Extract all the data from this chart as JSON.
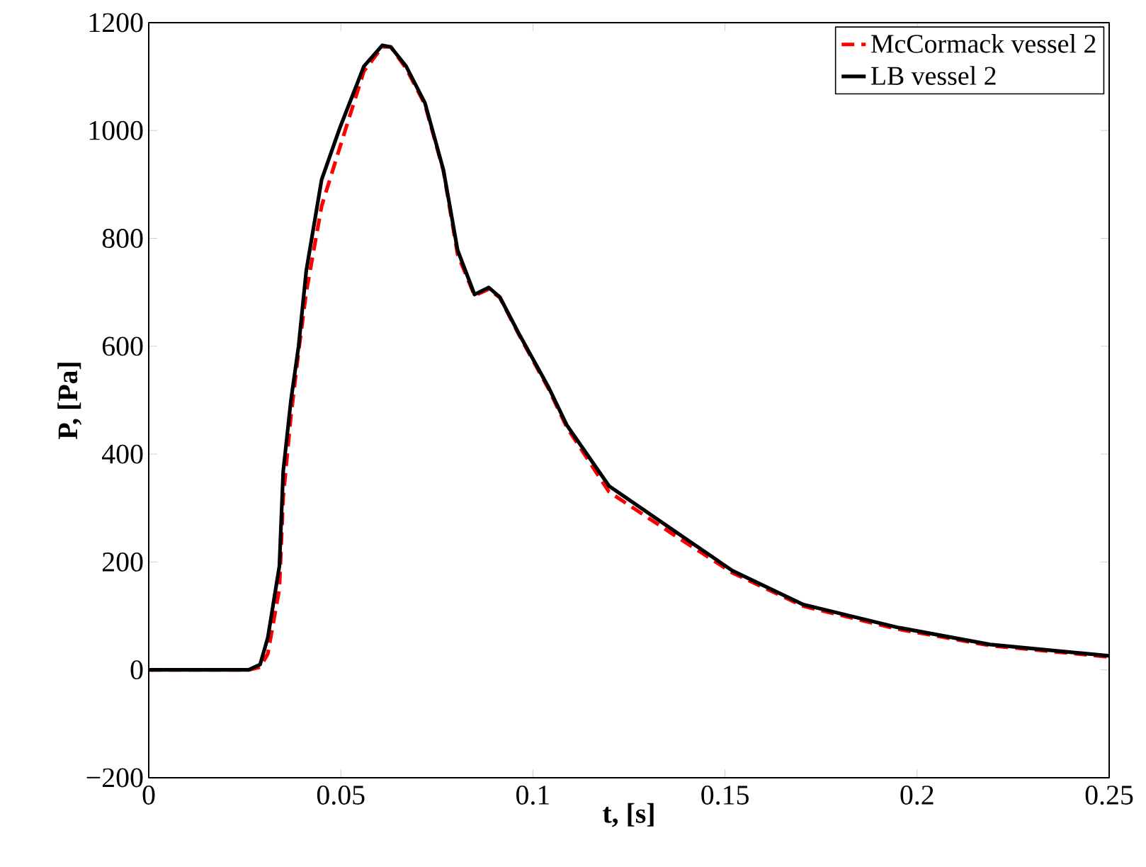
{
  "chart_data": {
    "type": "line",
    "xlabel": "t, [s]",
    "ylabel": "P, [Pa]",
    "xlim": [
      0,
      0.25
    ],
    "ylim": [
      -200,
      1200
    ],
    "xticks": [
      0,
      0.05,
      0.1,
      0.15,
      0.2,
      0.25
    ],
    "yticks": [
      {
        "value": -200,
        "label": "−200"
      },
      0,
      200,
      400,
      600,
      800,
      1000,
      1200
    ],
    "legend": "top right",
    "grid": false,
    "series": [
      {
        "name": "McCormack vessel 2",
        "color": "#ff0000",
        "line_style": "dashed",
        "x": [
          0,
          0.026,
          0.029,
          0.031,
          0.034,
          0.035,
          0.037,
          0.039,
          0.041,
          0.045,
          0.0498,
          0.056,
          0.0608,
          0.063,
          0.067,
          0.0719,
          0.0767,
          0.0804,
          0.0848,
          0.0885,
          0.0914,
          0.0966,
          0.104,
          0.1088,
          0.1198,
          0.1357,
          0.1519,
          0.1704,
          0.1947,
          0.219,
          0.25
        ],
        "values": [
          0,
          0,
          5,
          30,
          150,
          320,
          470,
          590,
          700,
          860,
          970,
          1110,
          1155,
          1155,
          1115,
          1048,
          925,
          770,
          694,
          706,
          690,
          618,
          522,
          450,
          330,
          255,
          180,
          118,
          76,
          45,
          24
        ]
      },
      {
        "name": "LB vessel 2",
        "color": "#000000",
        "line_style": "solid",
        "x": [
          0,
          0.026,
          0.029,
          0.031,
          0.034,
          0.035,
          0.037,
          0.039,
          0.041,
          0.045,
          0.0498,
          0.056,
          0.0608,
          0.063,
          0.067,
          0.0719,
          0.0767,
          0.0804,
          0.0848,
          0.0885,
          0.0914,
          0.0966,
          0.104,
          0.1088,
          0.1198,
          0.1357,
          0.1519,
          0.1704,
          0.1947,
          0.219,
          0.25
        ],
        "values": [
          0,
          0,
          10,
          60,
          192,
          368,
          499,
          600,
          740,
          909,
          1006,
          1119,
          1158,
          1155,
          1119,
          1051,
          927,
          778,
          696,
          709,
          691,
          620,
          525,
          454,
          341,
          263,
          184,
          121,
          79,
          47,
          26
        ]
      }
    ]
  }
}
